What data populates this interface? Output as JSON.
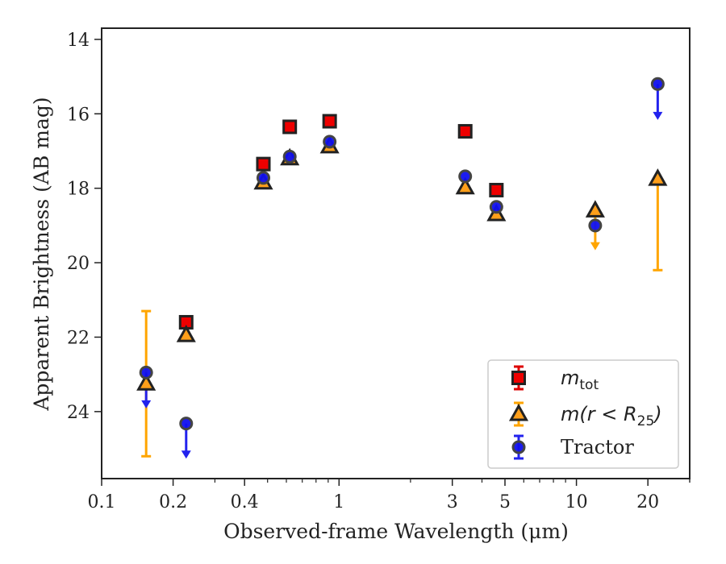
{
  "chart_data": {
    "type": "scatter",
    "x_scale": "log",
    "y_inverted": true,
    "xlabel": "Observed-frame Wavelength (μm)",
    "ylabel": "Apparent Brightness (AB mag)",
    "xlim": [
      0.1,
      30
    ],
    "ylim": [
      25.8,
      13.7
    ],
    "x_ticks": [
      {
        "value": 0.1,
        "label": "0.1"
      },
      {
        "value": 0.2,
        "label": "0.2"
      },
      {
        "value": 0.4,
        "label": "0.4"
      },
      {
        "value": 1,
        "label": "1"
      },
      {
        "value": 3,
        "label": "3"
      },
      {
        "value": 5,
        "label": "5"
      },
      {
        "value": 10,
        "label": "10"
      },
      {
        "value": 20,
        "label": "20"
      }
    ],
    "y_ticks": [
      {
        "value": 14,
        "label": "14"
      },
      {
        "value": 16,
        "label": "16"
      },
      {
        "value": 18,
        "label": "18"
      },
      {
        "value": 20,
        "label": "20"
      },
      {
        "value": 22,
        "label": "22"
      },
      {
        "value": 24,
        "label": "24"
      }
    ],
    "legend_position": "lower-right",
    "series": [
      {
        "name": "m_tot",
        "marker": "square",
        "color": "#ee0000",
        "edge_color": "#222222",
        "error_color": "#dd0000",
        "points": [
          {
            "x": 0.227,
            "y": 21.6
          },
          {
            "x": 0.48,
            "y": 17.35
          },
          {
            "x": 0.62,
            "y": 16.35
          },
          {
            "x": 0.913,
            "y": 16.2
          },
          {
            "x": 3.4,
            "y": 16.47
          },
          {
            "x": 4.6,
            "y": 18.05
          }
        ]
      },
      {
        "name": "m(r < R_25)",
        "marker": "triangle",
        "color": "#ff9f1a",
        "edge_color": "#222222",
        "error_color": "#ffa500",
        "points": [
          {
            "x": 0.154,
            "y": 23.25,
            "err_low": 1.95,
            "err_high": 1.95
          },
          {
            "x": 0.227,
            "y": 21.95
          },
          {
            "x": 0.48,
            "y": 17.85
          },
          {
            "x": 0.62,
            "y": 17.2
          },
          {
            "x": 0.913,
            "y": 16.88
          },
          {
            "x": 3.4,
            "y": 17.98
          },
          {
            "x": 4.6,
            "y": 18.7
          },
          {
            "x": 12.0,
            "y": 18.6,
            "upper_limit_tip": 19.6
          },
          {
            "x": 22.0,
            "y": 17.75,
            "err_low": 2.45,
            "err_high": 0
          }
        ]
      },
      {
        "name": "Tractor",
        "marker": "circle",
        "color": "#1010ee",
        "edge_color": "#444444",
        "error_color": "#2222ee",
        "points": [
          {
            "x": 0.154,
            "y": 22.95,
            "upper_limit_tip": 23.85
          },
          {
            "x": 0.227,
            "y": 24.32,
            "upper_limit_tip": 25.2
          },
          {
            "x": 0.48,
            "y": 17.72
          },
          {
            "x": 0.62,
            "y": 17.15
          },
          {
            "x": 0.913,
            "y": 16.75
          },
          {
            "x": 3.4,
            "y": 17.68
          },
          {
            "x": 4.6,
            "y": 18.5
          },
          {
            "x": 12.0,
            "y": 19.0
          },
          {
            "x": 22.0,
            "y": 15.2,
            "upper_limit_tip": 16.1
          }
        ]
      }
    ]
  }
}
